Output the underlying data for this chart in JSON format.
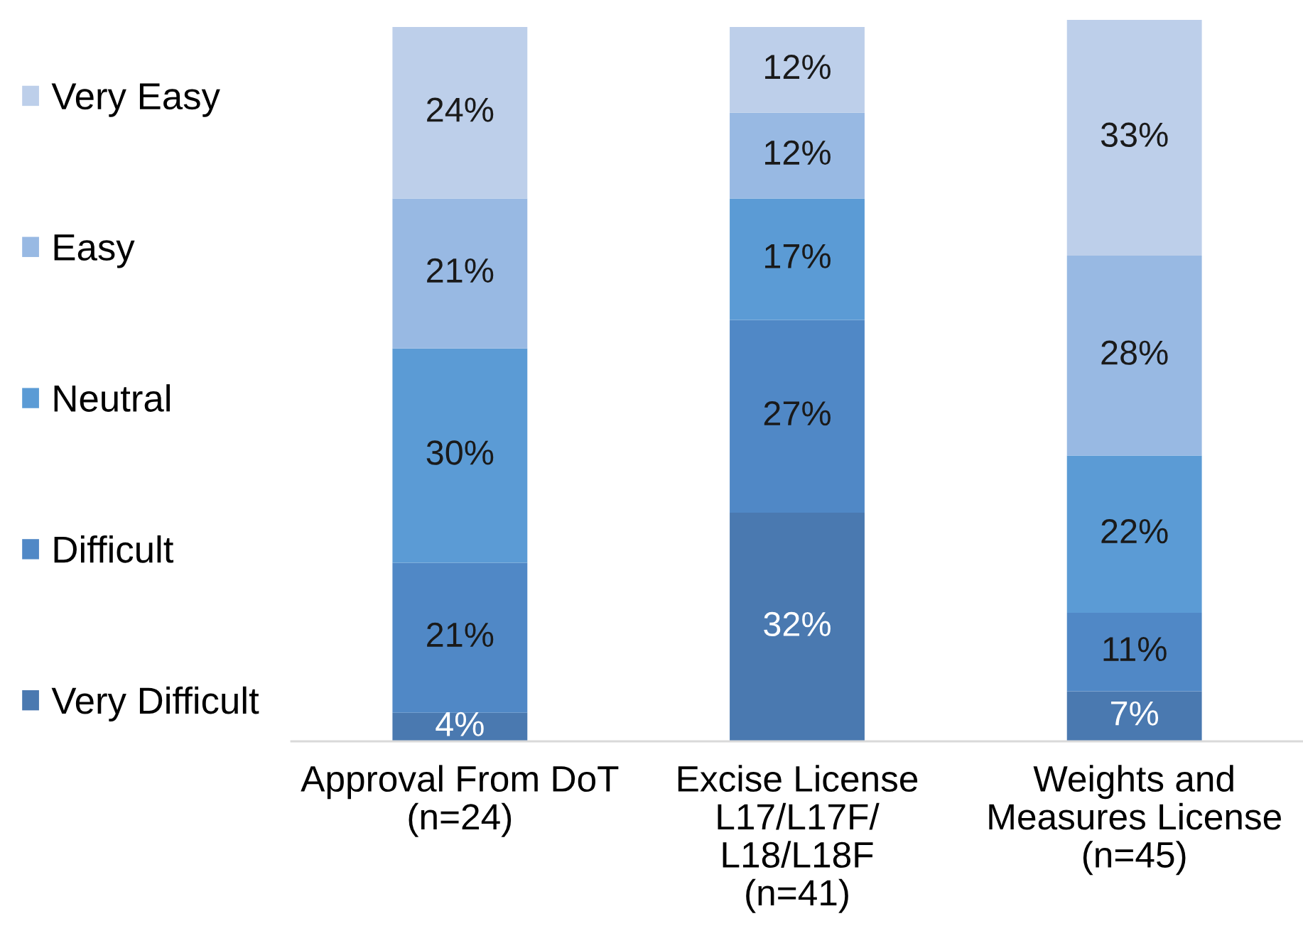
{
  "chart_data": {
    "type": "bar",
    "stacked": true,
    "tick_labels": "x",
    "legend": "left",
    "categories": [
      "Approval From DoT\n(n=24)",
      "Excise License\nL17/L17F/\nL18/L18F\n(n=41)",
      "Weights and\nMeasures License\n(n=45)"
    ],
    "series": [
      {
        "name": "Very Difficult",
        "color": "#4a79b0",
        "values": [
          4,
          32,
          7
        ],
        "value_labels": [
          "4%",
          "32%",
          "7%"
        ]
      },
      {
        "name": "Difficult",
        "color": "#5088c6",
        "values": [
          21,
          27,
          11
        ],
        "value_labels": [
          "21%",
          "27%",
          "11%"
        ]
      },
      {
        "name": "Neutral",
        "color": "#5b9bd5",
        "values": [
          30,
          17,
          22
        ],
        "value_labels": [
          "30%",
          "17%",
          "22%"
        ]
      },
      {
        "name": "Easy",
        "color": "#98b9e3",
        "values": [
          21,
          12,
          28
        ],
        "value_labels": [
          "21%",
          "12%",
          "28%"
        ]
      },
      {
        "name": "Very Easy",
        "color": "#bdcfea",
        "values": [
          24,
          12,
          33
        ],
        "value_labels": [
          "24%",
          "12%",
          "33%"
        ]
      }
    ]
  }
}
